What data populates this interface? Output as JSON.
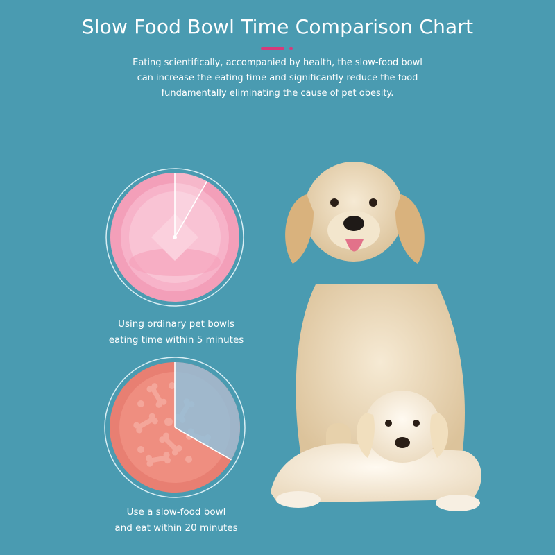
{
  "title": "Slow Food Bowl Time Comparison Chart",
  "subtitle": [
    "Eating scientifically, accompanied by health, the slow-food bowl",
    "can increase the eating time and significantly reduce the food",
    "fundamentally eliminating the cause of pet obesity."
  ],
  "colors": {
    "background": "#4a9bb1",
    "accent": "#d63a7a",
    "ordinary_bowl": "#f7a6bf",
    "slow_bowl": "#ef8b7e",
    "slow_bowl_tint": "#8fc1dd",
    "text": "#ffffff"
  },
  "comparisons": [
    {
      "caption_line1": "Using ordinary pet bowls",
      "caption_line2": "eating time within 5 minutes",
      "icon": "ordinary-bowl-icon",
      "time_fraction": 0.083
    },
    {
      "caption_line1": "Use a slow-food bowl",
      "caption_line2": "and eat within 20 minutes",
      "icon": "slow-food-bowl-icon",
      "time_fraction": 0.333
    }
  ],
  "photo": {
    "icon": "golden-retriever-and-puppy-icon"
  }
}
